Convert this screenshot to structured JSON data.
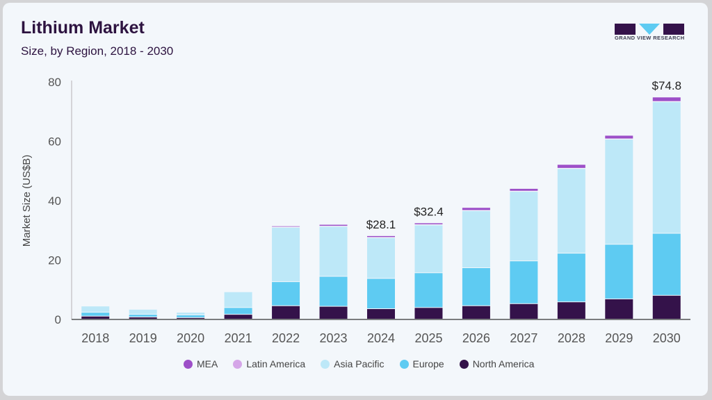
{
  "header": {
    "title": "Lithium Market",
    "subtitle": "Size, by Region, 2018 - 2030"
  },
  "logo": {
    "text": "GRAND VIEW RESEARCH",
    "name": "grand-view-research-logo"
  },
  "chart_data": {
    "type": "bar",
    "stacked": true,
    "title": "Lithium Market",
    "subtitle": "Size, by Region, 2018 - 2030",
    "xlabel": "",
    "ylabel": "Market Size (US$B)",
    "ylim": [
      0,
      80
    ],
    "yticks": [
      0,
      20,
      40,
      60,
      80
    ],
    "grid": false,
    "legend_position": "bottom",
    "categories": [
      "2018",
      "2019",
      "2020",
      "2021",
      "2022",
      "2023",
      "2024",
      "2025",
      "2026",
      "2027",
      "2028",
      "2029",
      "2030"
    ],
    "series": [
      {
        "name": "North America",
        "color": "#34124a",
        "values": [
          1.0,
          0.7,
          0.5,
          1.6,
          4.5,
          4.3,
          3.5,
          3.9,
          4.5,
          5.2,
          5.8,
          6.8,
          8.0
        ]
      },
      {
        "name": "Europe",
        "color": "#5ecbf2",
        "values": [
          1.3,
          0.9,
          0.9,
          2.3,
          8.1,
          10.1,
          10.2,
          11.7,
          12.8,
          14.4,
          16.4,
          18.4,
          20.9
        ]
      },
      {
        "name": "Asia Pacific",
        "color": "#bde8f8",
        "values": [
          2.1,
          1.7,
          0.9,
          5.3,
          18.3,
          16.8,
          13.7,
          16.1,
          19.2,
          23.4,
          28.5,
          35.4,
          44.3
        ]
      },
      {
        "name": "Latin America",
        "color": "#d5a6e8",
        "values": [
          0.05,
          0.05,
          0.05,
          0.05,
          0.1,
          0.1,
          0.1,
          0.1,
          0.1,
          0.1,
          0.1,
          0.1,
          0.1
        ]
      },
      {
        "name": "MEA",
        "color": "#9d4fc8",
        "values": [
          0.15,
          0.05,
          0.05,
          0.15,
          0.4,
          0.6,
          0.6,
          0.6,
          1.0,
          0.9,
          1.3,
          1.2,
          1.5
        ]
      }
    ],
    "annotations": [
      {
        "category": "2024",
        "text": "$28.1"
      },
      {
        "category": "2025",
        "text": "$32.4"
      },
      {
        "category": "2030",
        "text": "$74.8"
      }
    ]
  },
  "legend": [
    {
      "label": "MEA",
      "color": "#9d4fc8"
    },
    {
      "label": "Latin America",
      "color": "#d5a6e8"
    },
    {
      "label": "Asia Pacific",
      "color": "#bde8f8"
    },
    {
      "label": "Europe",
      "color": "#5ecbf2"
    },
    {
      "label": "North America",
      "color": "#34124a"
    }
  ]
}
